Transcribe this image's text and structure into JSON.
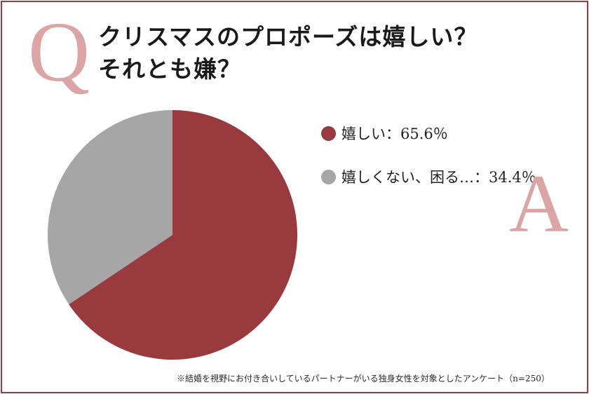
{
  "title": {
    "q_letter": "Q",
    "line1": "クリスマスのプロポーズは嬉しい？",
    "line2": "それとも嫌？",
    "a_letter": "A"
  },
  "colors": {
    "border": "#9c3c40",
    "accent_letter": "#dba5a5",
    "yes": "#983a3e",
    "no": "#a6a6a6"
  },
  "chart_data": {
    "type": "pie",
    "title": "クリスマスのプロポーズは嬉しい？それとも嫌？",
    "series": [
      {
        "name": "嬉しい",
        "value": 65.6,
        "color": "#983a3e"
      },
      {
        "name": "嬉しくない、困る…",
        "value": 34.4,
        "color": "#a6a6a6"
      }
    ],
    "start_angle_deg": 0,
    "direction": "clockwise",
    "legend_position": "right"
  },
  "legend": [
    {
      "text": "嬉しい：65.6％",
      "color": "#983a3e"
    },
    {
      "text": "嬉しくない、困る…：34.4％",
      "color": "#a6a6a6"
    }
  ],
  "footnote": "※結婚を視野にお付き合いしているパートナーがいる独身女性を対象としたアンケート（n=250）"
}
